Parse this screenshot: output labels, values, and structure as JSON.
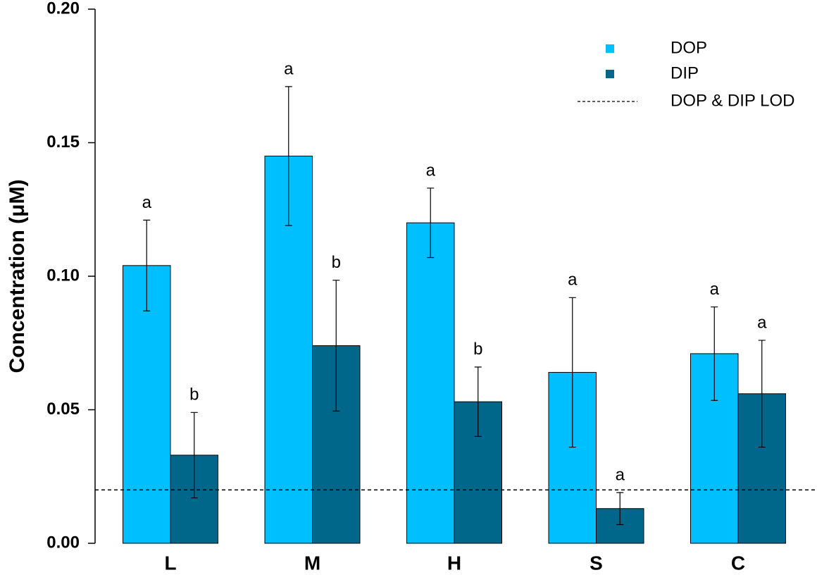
{
  "chart_data": {
    "type": "bar",
    "y_label": "Concentration (μM)",
    "categories": [
      "L",
      "M",
      "H",
      "S",
      "C"
    ],
    "series": [
      {
        "name": "DOP",
        "color": "#00bfff",
        "values": [
          0.104,
          0.145,
          0.12,
          0.064,
          0.071
        ],
        "errors": [
          0.017,
          0.026,
          0.013,
          0.028,
          0.0175
        ],
        "letters": [
          "a",
          "a",
          "a",
          "a",
          "a"
        ]
      },
      {
        "name": "DIP",
        "color": "#00668a",
        "values": [
          0.033,
          0.074,
          0.053,
          0.013,
          0.056
        ],
        "errors": [
          0.016,
          0.0245,
          0.013,
          0.006,
          0.02
        ],
        "letters": [
          "b",
          "b",
          "b",
          "a",
          "a"
        ]
      }
    ],
    "reference_line": {
      "label": "DOP & DIP LOD",
      "value": 0.02
    },
    "ylim": [
      0,
      0.2
    ],
    "yticks": [
      {
        "value": 0,
        "label": "0.00"
      },
      {
        "value": 0.05,
        "label": "0.05"
      },
      {
        "value": 0.1,
        "label": "0.10"
      },
      {
        "value": 0.15,
        "label": "0.15"
      },
      {
        "value": 0.2,
        "label": "0.20"
      }
    ],
    "legend": "top-right"
  }
}
